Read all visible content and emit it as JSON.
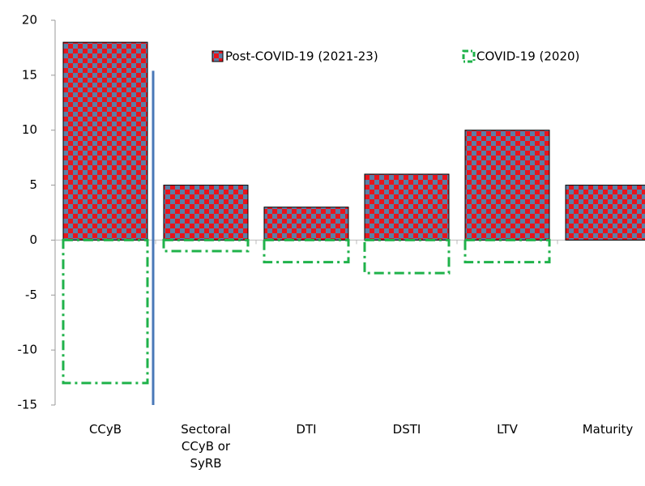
{
  "chart_data": {
    "type": "bar",
    "categories": [
      "CCyB",
      "Sectoral CCyB or SyRB",
      "DTI",
      "DSTI",
      "LTV",
      "Maturity"
    ],
    "series": [
      {
        "name": "Post-COVID-19 (2021-23)",
        "color": "#e8141c",
        "values": [
          18,
          5,
          3,
          6,
          10,
          5
        ]
      },
      {
        "name": "COVID-19 (2020)",
        "color": "#1fb24a",
        "values": [
          -13,
          -1,
          -2,
          -3,
          -2,
          0
        ]
      }
    ],
    "ylim": [
      -15,
      20
    ],
    "yticks": [
      -15,
      -10,
      -5,
      0,
      5,
      10,
      15,
      20
    ],
    "grid": false
  }
}
